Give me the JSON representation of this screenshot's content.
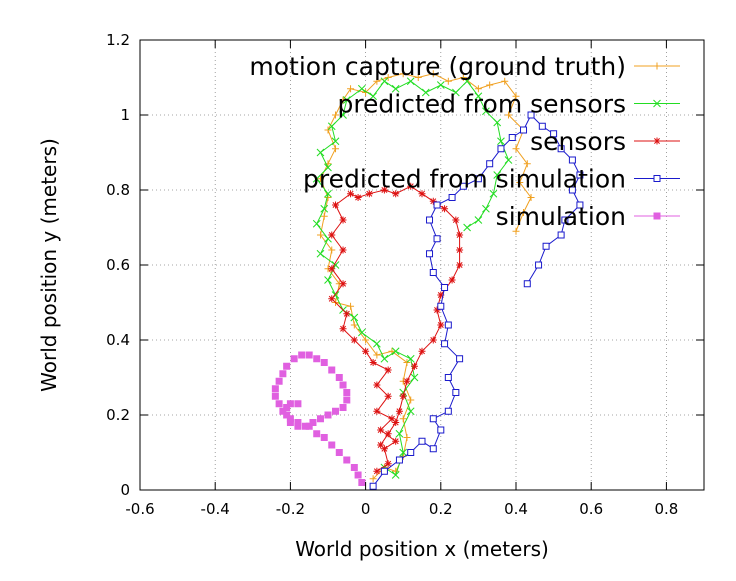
{
  "chart_data": {
    "type": "scatter",
    "title": "",
    "xlabel": "World position x (meters)",
    "ylabel": "World position y (meters)",
    "xlim": [
      -0.6,
      0.9
    ],
    "ylim": [
      0,
      1.2
    ],
    "xticks": [
      -0.6,
      -0.4,
      -0.2,
      0,
      0.2,
      0.4,
      0.6,
      0.8
    ],
    "xtick_labels": [
      "-0.6",
      "-0.4",
      "-0.2",
      "0",
      "0.2",
      "0.4",
      "0.6",
      "0.8"
    ],
    "yticks": [
      0,
      0.2,
      0.4,
      0.6,
      0.8,
      1.0,
      1.2
    ],
    "ytick_labels": [
      "0",
      "0.2",
      "0.4",
      "0.6",
      "0.8",
      "1",
      "1.2"
    ],
    "grid": true,
    "legend_position": "top-right",
    "series": [
      {
        "name": "motion capture (ground truth)",
        "color": "#f0a020",
        "marker": "plus",
        "line": true,
        "points": [
          [
            0.02,
            0.03
          ],
          [
            0.05,
            0.06
          ],
          [
            0.08,
            0.05
          ],
          [
            0.1,
            0.09
          ],
          [
            0.11,
            0.14
          ],
          [
            0.1,
            0.19
          ],
          [
            0.12,
            0.24
          ],
          [
            0.1,
            0.29
          ],
          [
            0.11,
            0.34
          ],
          [
            0.07,
            0.37
          ],
          [
            0.03,
            0.36
          ],
          [
            0.0,
            0.4
          ],
          [
            -0.03,
            0.44
          ],
          [
            -0.04,
            0.49
          ],
          [
            -0.08,
            0.5
          ],
          [
            -0.07,
            0.55
          ],
          [
            -0.1,
            0.59
          ],
          [
            -0.09,
            0.64
          ],
          [
            -0.12,
            0.68
          ],
          [
            -0.11,
            0.73
          ],
          [
            -0.1,
            0.78
          ],
          [
            -0.12,
            0.83
          ],
          [
            -0.1,
            0.87
          ],
          [
            -0.08,
            0.91
          ],
          [
            -0.1,
            0.96
          ],
          [
            -0.08,
            1.0
          ],
          [
            -0.06,
            1.04
          ],
          [
            -0.04,
            1.07
          ],
          [
            0.0,
            1.06
          ],
          [
            0.03,
            1.09
          ],
          [
            0.06,
            1.1
          ],
          [
            0.1,
            1.11
          ],
          [
            0.14,
            1.1
          ],
          [
            0.18,
            1.11
          ],
          [
            0.22,
            1.09
          ],
          [
            0.26,
            1.1
          ],
          [
            0.3,
            1.07
          ],
          [
            0.33,
            1.08
          ],
          [
            0.37,
            1.09
          ],
          [
            0.4,
            1.05
          ],
          [
            0.38,
            1.0
          ],
          [
            0.42,
            0.96
          ],
          [
            0.4,
            0.91
          ],
          [
            0.43,
            0.87
          ],
          [
            0.41,
            0.82
          ],
          [
            0.44,
            0.78
          ],
          [
            0.42,
            0.74
          ],
          [
            0.4,
            0.69
          ]
        ]
      },
      {
        "name": "predicted from sensors",
        "color": "#22dd22",
        "marker": "x",
        "line": true,
        "points": [
          [
            0.05,
            0.06
          ],
          [
            0.08,
            0.04
          ],
          [
            0.1,
            0.1
          ],
          [
            0.09,
            0.15
          ],
          [
            0.12,
            0.21
          ],
          [
            0.1,
            0.26
          ],
          [
            0.13,
            0.3
          ],
          [
            0.12,
            0.35
          ],
          [
            0.08,
            0.37
          ],
          [
            0.05,
            0.35
          ],
          [
            0.03,
            0.39
          ],
          [
            -0.01,
            0.42
          ],
          [
            -0.03,
            0.46
          ],
          [
            -0.06,
            0.48
          ],
          [
            -0.08,
            0.52
          ],
          [
            -0.1,
            0.56
          ],
          [
            -0.08,
            0.6
          ],
          [
            -0.12,
            0.63
          ],
          [
            -0.1,
            0.67
          ],
          [
            -0.13,
            0.71
          ],
          [
            -0.11,
            0.75
          ],
          [
            -0.1,
            0.79
          ],
          [
            -0.13,
            0.83
          ],
          [
            -0.1,
            0.86
          ],
          [
            -0.12,
            0.9
          ],
          [
            -0.08,
            0.93
          ],
          [
            -0.09,
            0.97
          ],
          [
            -0.06,
            1.0
          ],
          [
            -0.05,
            1.04
          ],
          [
            -0.01,
            1.07
          ],
          [
            0.02,
            1.05
          ],
          [
            0.05,
            1.09
          ],
          [
            0.08,
            1.07
          ],
          [
            0.12,
            1.09
          ],
          [
            0.16,
            1.06
          ],
          [
            0.2,
            1.08
          ],
          [
            0.24,
            1.06
          ],
          [
            0.27,
            1.09
          ],
          [
            0.3,
            1.05
          ],
          [
            0.32,
            1.01
          ],
          [
            0.35,
            0.98
          ],
          [
            0.36,
            0.93
          ],
          [
            0.38,
            0.88
          ],
          [
            0.35,
            0.84
          ],
          [
            0.34,
            0.79
          ],
          [
            0.32,
            0.75
          ],
          [
            0.3,
            0.72
          ],
          [
            0.27,
            0.7
          ]
        ]
      },
      {
        "name": "sensors",
        "color": "#dd1111",
        "marker": "star",
        "line": true,
        "points": [
          [
            0.03,
            0.05
          ],
          [
            0.06,
            0.07
          ],
          [
            0.05,
            0.11
          ],
          [
            0.08,
            0.13
          ],
          [
            0.04,
            0.16
          ],
          [
            0.07,
            0.19
          ],
          [
            0.03,
            0.21
          ],
          [
            0.06,
            0.25
          ],
          [
            0.03,
            0.28
          ],
          [
            0.06,
            0.32
          ],
          [
            0.02,
            0.34
          ],
          [
            0.0,
            0.37
          ],
          [
            -0.03,
            0.4
          ],
          [
            -0.06,
            0.43
          ],
          [
            -0.05,
            0.47
          ],
          [
            -0.09,
            0.51
          ],
          [
            -0.06,
            0.55
          ],
          [
            -0.09,
            0.59
          ],
          [
            -0.06,
            0.64
          ],
          [
            -0.09,
            0.68
          ],
          [
            -0.06,
            0.72
          ],
          [
            -0.08,
            0.76
          ],
          [
            -0.04,
            0.79
          ],
          [
            -0.02,
            0.78
          ],
          [
            0.01,
            0.79
          ],
          [
            0.05,
            0.8
          ],
          [
            0.08,
            0.79
          ],
          [
            0.12,
            0.81
          ],
          [
            0.15,
            0.79
          ],
          [
            0.18,
            0.77
          ],
          [
            0.21,
            0.75
          ],
          [
            0.24,
            0.72
          ],
          [
            0.25,
            0.68
          ],
          [
            0.25,
            0.64
          ],
          [
            0.25,
            0.6
          ],
          [
            0.23,
            0.56
          ],
          [
            0.2,
            0.52
          ],
          [
            0.19,
            0.48
          ],
          [
            0.2,
            0.44
          ],
          [
            0.18,
            0.4
          ],
          [
            0.15,
            0.37
          ],
          [
            0.13,
            0.33
          ],
          [
            0.11,
            0.29
          ],
          [
            0.1,
            0.25
          ],
          [
            0.09,
            0.21
          ],
          [
            0.08,
            0.18
          ],
          [
            0.06,
            0.15
          ],
          [
            0.04,
            0.12
          ]
        ]
      },
      {
        "name": "predicted from simulation",
        "color": "#1a1acc",
        "marker": "square-open",
        "line": true,
        "points": [
          [
            0.02,
            0.01
          ],
          [
            0.05,
            0.05
          ],
          [
            0.09,
            0.08
          ],
          [
            0.12,
            0.1
          ],
          [
            0.15,
            0.13
          ],
          [
            0.18,
            0.11
          ],
          [
            0.2,
            0.16
          ],
          [
            0.18,
            0.19
          ],
          [
            0.22,
            0.21
          ],
          [
            0.24,
            0.26
          ],
          [
            0.22,
            0.3
          ],
          [
            0.25,
            0.35
          ],
          [
            0.21,
            0.39
          ],
          [
            0.22,
            0.44
          ],
          [
            0.2,
            0.49
          ],
          [
            0.21,
            0.54
          ],
          [
            0.18,
            0.58
          ],
          [
            0.17,
            0.63
          ],
          [
            0.19,
            0.67
          ],
          [
            0.17,
            0.72
          ],
          [
            0.19,
            0.76
          ],
          [
            0.23,
            0.78
          ],
          [
            0.26,
            0.81
          ],
          [
            0.3,
            0.83
          ],
          [
            0.33,
            0.87
          ],
          [
            0.36,
            0.91
          ],
          [
            0.39,
            0.94
          ],
          [
            0.42,
            0.96
          ],
          [
            0.44,
            1.0
          ],
          [
            0.47,
            0.97
          ],
          [
            0.5,
            0.95
          ],
          [
            0.52,
            0.91
          ],
          [
            0.55,
            0.88
          ],
          [
            0.57,
            0.84
          ],
          [
            0.55,
            0.8
          ],
          [
            0.57,
            0.76
          ],
          [
            0.53,
            0.72
          ],
          [
            0.52,
            0.68
          ],
          [
            0.48,
            0.65
          ],
          [
            0.46,
            0.6
          ],
          [
            0.43,
            0.55
          ]
        ]
      },
      {
        "name": "simulation",
        "color": "#e060e0",
        "marker": "square-filled",
        "line": false,
        "points": [
          [
            -0.01,
            0.02
          ],
          [
            -0.02,
            0.04
          ],
          [
            -0.03,
            0.06
          ],
          [
            -0.05,
            0.08
          ],
          [
            -0.07,
            0.1
          ],
          [
            -0.09,
            0.12
          ],
          [
            -0.11,
            0.14
          ],
          [
            -0.13,
            0.15
          ],
          [
            -0.15,
            0.17
          ],
          [
            -0.18,
            0.18
          ],
          [
            -0.2,
            0.19
          ],
          [
            -0.22,
            0.21
          ],
          [
            -0.23,
            0.23
          ],
          [
            -0.24,
            0.25
          ],
          [
            -0.24,
            0.27
          ],
          [
            -0.23,
            0.29
          ],
          [
            -0.22,
            0.31
          ],
          [
            -0.21,
            0.33
          ],
          [
            -0.19,
            0.35
          ],
          [
            -0.17,
            0.36
          ],
          [
            -0.15,
            0.36
          ],
          [
            -0.13,
            0.35
          ],
          [
            -0.11,
            0.34
          ],
          [
            -0.09,
            0.32
          ],
          [
            -0.07,
            0.3
          ],
          [
            -0.06,
            0.28
          ],
          [
            -0.05,
            0.26
          ],
          [
            -0.05,
            0.24
          ],
          [
            -0.06,
            0.22
          ],
          [
            -0.08,
            0.21
          ],
          [
            -0.1,
            0.2
          ],
          [
            -0.12,
            0.19
          ],
          [
            -0.14,
            0.18
          ],
          [
            -0.16,
            0.17
          ],
          [
            -0.18,
            0.17
          ],
          [
            -0.2,
            0.18
          ],
          [
            -0.21,
            0.2
          ],
          [
            -0.21,
            0.22
          ],
          [
            -0.2,
            0.23
          ],
          [
            -0.18,
            0.23
          ]
        ]
      }
    ]
  }
}
